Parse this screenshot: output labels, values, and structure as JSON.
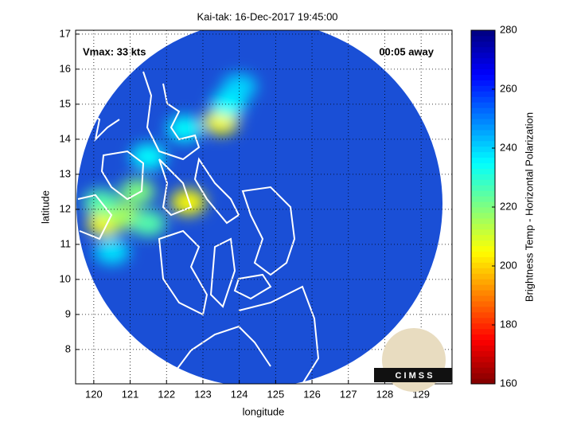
{
  "chart_data": {
    "type": "swath",
    "title": "Kai-tak: 16-Dec-2017 19:45:00",
    "x_label": "longitude",
    "y_label": "latitude",
    "colorbar_label": "Brightness Temp - Horizontal Polarization",
    "annotations": [
      "Vmax: 33 kts",
      "00:05 away"
    ],
    "logo": "C I M S S",
    "xlim": [
      119.5,
      129.85
    ],
    "ylim": [
      7.02,
      17.11
    ],
    "xticks": [
      120,
      121,
      122,
      123,
      124,
      125,
      126,
      127,
      128,
      129
    ],
    "yticks": [
      8,
      9,
      10,
      11,
      12,
      13,
      14,
      15,
      16,
      17
    ],
    "clim": [
      160,
      280
    ],
    "cticks": [
      160,
      180,
      200,
      220,
      240,
      260,
      280
    ],
    "colormap": "jet-reversed",
    "grid": true,
    "points": {
      "x": [
        120.3,
        120.8,
        121.2,
        121.5,
        122.6,
        123.5,
        123.7,
        122.5,
        120.5,
        124.0,
        121.5,
        120.2
      ],
      "y": [
        11.6,
        11.8,
        12.5,
        11.6,
        12.2,
        14.5,
        15.0,
        14.3,
        10.8,
        15.5,
        13.5,
        12.2
      ],
      "values": [
        205,
        215,
        220,
        225,
        205,
        205,
        235,
        235,
        238,
        240,
        235,
        225
      ]
    }
  }
}
